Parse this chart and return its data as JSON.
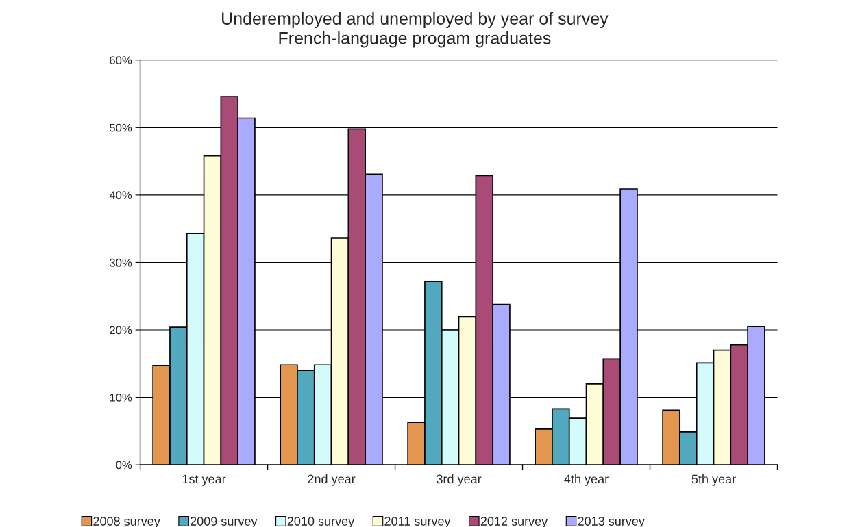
{
  "chart_data": {
    "type": "bar",
    "title": "Underemployed and unemployed by year of survey",
    "subtitle": "French-language progam graduates",
    "categories": [
      "1st year",
      "2nd year",
      "3rd year",
      "4th year",
      "5th year"
    ],
    "series": [
      {
        "name": "2008 survey",
        "color": "#e39650",
        "values": [
          14.7,
          14.8,
          6.3,
          5.3,
          8.1
        ]
      },
      {
        "name": "2009 survey",
        "color": "#52a8be",
        "values": [
          20.4,
          14.0,
          27.2,
          8.3,
          4.9
        ]
      },
      {
        "name": "2010 survey",
        "color": "#d3fbfc",
        "values": [
          34.3,
          14.8,
          20.0,
          6.9,
          15.1
        ]
      },
      {
        "name": "2011 survey",
        "color": "#fefcd6",
        "values": [
          45.8,
          33.6,
          22.0,
          12.0,
          17.0
        ]
      },
      {
        "name": "2012 survey",
        "color": "#a94a77",
        "values": [
          54.6,
          49.8,
          42.9,
          15.7,
          17.8
        ]
      },
      {
        "name": "2013 survey",
        "color": "#aaaafe",
        "values": [
          51.4,
          43.1,
          23.8,
          40.9,
          20.5
        ]
      }
    ],
    "ylim": [
      0,
      60
    ],
    "yticks": [
      {
        "value": 0,
        "label": "0%"
      },
      {
        "value": 10,
        "label": "10%"
      },
      {
        "value": 20,
        "label": "20%"
      },
      {
        "value": 30,
        "label": "30%"
      },
      {
        "value": 40,
        "label": "40%"
      },
      {
        "value": 50,
        "label": "50%"
      },
      {
        "value": 60,
        "label": "60%"
      }
    ],
    "grid": "y",
    "legend": "bottom"
  }
}
